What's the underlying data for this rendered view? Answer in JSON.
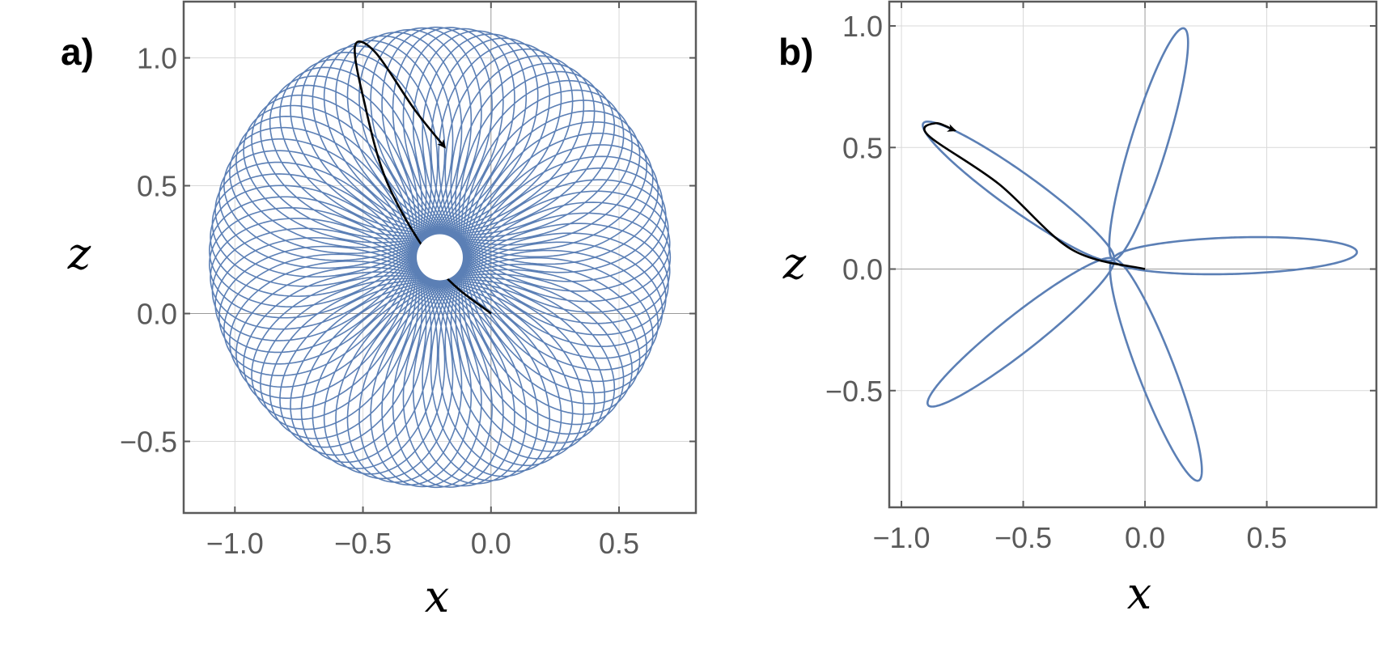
{
  "colors": {
    "series": "#5b7fb5",
    "highlight": "#000000",
    "axis": "#5a5a5a",
    "grid": "#d9d9d9"
  },
  "chart_data": [
    {
      "panel": "a)",
      "type": "line",
      "xlabel": "x",
      "ylabel": "z",
      "xlim": [
        -1.2,
        0.8
      ],
      "ylim": [
        -0.78,
        1.22
      ],
      "xticks": [
        -1.0,
        -0.5,
        0.0,
        0.5
      ],
      "xtick_labels": [
        "−1.0",
        "−0.5",
        "0.0",
        "0.5"
      ],
      "yticks": [
        -0.5,
        0.0,
        0.5,
        1.0
      ],
      "ytick_labels": [
        "−0.5",
        "0.0",
        "0.5",
        "1.0"
      ],
      "grid": true,
      "legend": "none",
      "series": [
        {
          "role": "precessing-orbit",
          "center": [
            -0.2,
            0.22
          ],
          "outer_radius": 0.9,
          "inner_radius": 0.09,
          "loops": 68,
          "closure_turns": 19
        },
        {
          "role": "first-orbit-segment",
          "points": [
            [
              0.0,
              0.0
            ],
            [
              -0.2,
              0.17
            ],
            [
              -0.4,
              0.5
            ],
            [
              -0.5,
              0.85
            ],
            [
              -0.53,
              1.05
            ],
            [
              -0.45,
              1.02
            ],
            [
              -0.3,
              0.8
            ],
            [
              -0.18,
              0.65
            ]
          ],
          "arrow": "end"
        }
      ]
    },
    {
      "panel": "b)",
      "type": "line",
      "xlabel": "x",
      "ylabel": "z",
      "xlim": [
        -1.05,
        0.95
      ],
      "ylim": [
        -0.98,
        1.1
      ],
      "xticks": [
        -1.0,
        -0.5,
        0.0,
        0.5
      ],
      "xtick_labels": [
        "−1.0",
        "−0.5",
        "0.0",
        "0.5"
      ],
      "yticks": [
        -0.5,
        0.0,
        0.5,
        1.0
      ],
      "ytick_labels": [
        "−0.5",
        "0.0",
        "0.5",
        "1.0"
      ],
      "grid": true,
      "legend": "none",
      "series": [
        {
          "role": "five-petal-orbit",
          "petal_center": [
            -0.13,
            0.04
          ],
          "petals": [
            {
              "tip": [
                0.87,
                0.07
              ],
              "half_width": 0.075
            },
            {
              "tip": [
                0.16,
                0.99
              ],
              "half_width": 0.075
            },
            {
              "tip": [
                -0.91,
                0.6
              ],
              "half_width": 0.075
            },
            {
              "tip": [
                -0.89,
                -0.56
              ],
              "half_width": 0.075
            },
            {
              "tip": [
                0.22,
                -0.87
              ],
              "half_width": 0.075
            }
          ]
        },
        {
          "role": "first-orbit-segment",
          "points": [
            [
              0.0,
              0.0
            ],
            [
              -0.3,
              0.08
            ],
            [
              -0.6,
              0.35
            ],
            [
              -0.89,
              0.55
            ],
            [
              -0.86,
              0.6
            ],
            [
              -0.78,
              0.57
            ]
          ],
          "arrow": "end"
        }
      ]
    }
  ]
}
